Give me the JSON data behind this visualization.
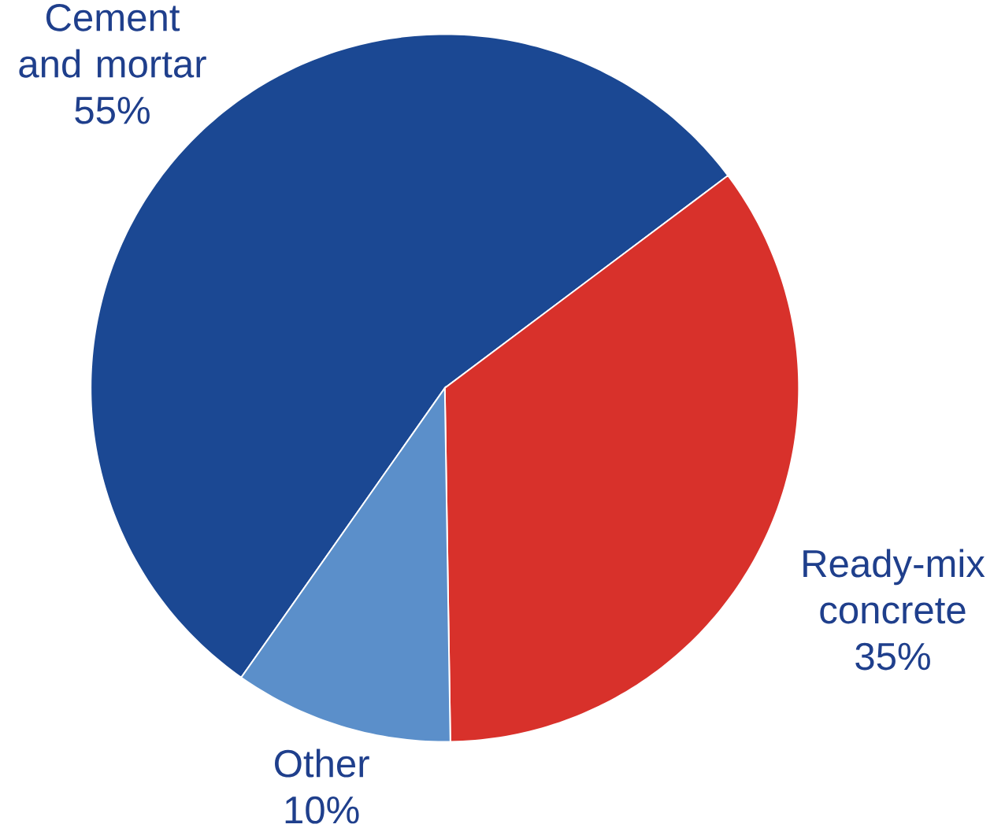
{
  "chart_data": {
    "type": "pie",
    "categories": [
      "Cement and mortar",
      "Ready-mix concrete",
      "Other"
    ],
    "values": [
      55,
      35,
      10
    ],
    "value_labels": [
      "55%",
      "35%",
      "10%"
    ],
    "colors": [
      "#1b4893",
      "#d8312b",
      "#5b8fca"
    ]
  }
}
